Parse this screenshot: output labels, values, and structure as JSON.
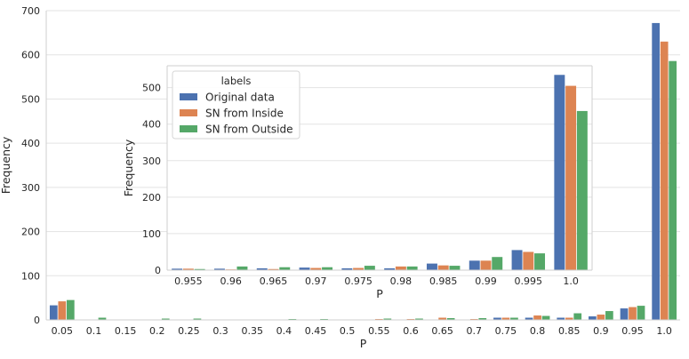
{
  "chart_data": [
    {
      "type": "bar",
      "title": "",
      "xlabel": "P",
      "ylabel": "Frequency",
      "ylim": [
        0,
        700
      ],
      "yticks": [
        0,
        100,
        200,
        300,
        400,
        500,
        600,
        700
      ],
      "grid": "horizontal",
      "categories": [
        "0.05",
        "0.1",
        "0.15",
        "0.2",
        "0.25",
        "0.3",
        "0.35",
        "0.4",
        "0.45",
        "0.5",
        "0.55",
        "0.6",
        "0.65",
        "0.7",
        "0.75",
        "0.8",
        "0.85",
        "0.9",
        "0.95",
        "1.0"
      ],
      "series": [
        {
          "name": "Original data",
          "values": [
            33,
            0,
            0,
            0,
            0,
            0,
            0,
            0,
            0,
            0,
            0,
            0,
            0,
            0,
            5,
            5,
            5,
            8,
            26,
            672
          ]
        },
        {
          "name": "SN from Inside",
          "values": [
            42,
            0,
            0,
            0,
            0,
            0,
            0,
            0,
            0,
            0,
            2,
            2,
            5,
            2,
            5,
            10,
            5,
            12,
            29,
            630
          ]
        },
        {
          "name": "SN from Outside",
          "values": [
            45,
            5,
            0,
            3,
            3,
            0,
            0,
            2,
            2,
            0,
            3,
            3,
            4,
            4,
            5,
            9,
            15,
            20,
            32,
            586
          ]
        }
      ]
    },
    {
      "type": "bar",
      "title": "",
      "xlabel": "P",
      "ylabel": "Frequency",
      "ylim": [
        0,
        560
      ],
      "yticks": [
        0,
        100,
        200,
        300,
        400,
        500
      ],
      "grid": "horizontal",
      "legend": {
        "title": "labels",
        "placement": "top-left"
      },
      "categories": [
        "0.955",
        "0.96",
        "0.965",
        "0.97",
        "0.975",
        "0.98",
        "0.985",
        "0.99",
        "0.995",
        "1.0"
      ],
      "series": [
        {
          "name": "Original data",
          "values": [
            4,
            4,
            5,
            7,
            5,
            5,
            18,
            26,
            55,
            535
          ]
        },
        {
          "name": "SN from Inside",
          "values": [
            4,
            2,
            3,
            6,
            6,
            10,
            13,
            26,
            50,
            505
          ]
        },
        {
          "name": "SN from Outside",
          "values": [
            3,
            10,
            8,
            8,
            12,
            10,
            12,
            36,
            46,
            436
          ]
        }
      ]
    }
  ],
  "colors": [
    "#4c72b0",
    "#dd8452",
    "#55a868"
  ]
}
